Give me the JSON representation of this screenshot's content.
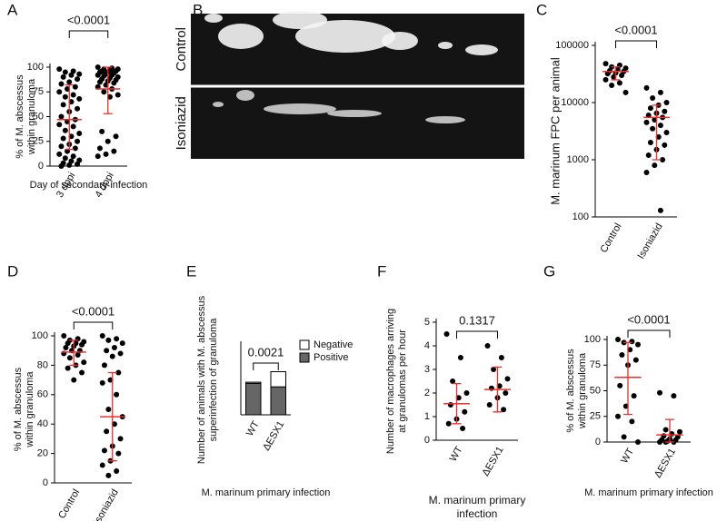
{
  "chart_data": [
    {
      "type": "dotplot",
      "label": "A",
      "significance": "<0.0001",
      "ylabel": [
        "% of M. abscessus",
        "within granuloma"
      ],
      "xlabel": [
        "Day of secondary infection"
      ],
      "categories": [
        "3 dppi",
        "4 dppi"
      ],
      "values": [
        [
          98,
          96,
          95,
          93,
          92,
          90,
          88,
          85,
          83,
          80,
          78,
          75,
          72,
          70,
          68,
          65,
          62,
          58,
          55,
          50,
          47,
          45,
          42,
          40,
          36,
          33,
          30,
          28,
          25,
          22,
          20,
          18,
          15,
          12,
          10,
          8,
          6,
          5,
          3,
          2,
          1,
          0
        ],
        [
          100,
          99,
          98,
          98,
          97,
          96,
          96,
          95,
          95,
          94,
          93,
          92,
          92,
          91,
          90,
          89,
          88,
          87,
          86,
          85,
          84,
          82,
          80,
          78,
          75,
          72,
          70,
          35,
          30,
          25,
          18,
          15,
          12,
          10
        ]
      ],
      "means": [
        47,
        78
      ],
      "lower": [
        17,
        53
      ],
      "upper": [
        82,
        100
      ],
      "ylim": [
        0,
        100
      ],
      "yticks": [
        0,
        25,
        50,
        75,
        100
      ]
    },
    {
      "type": "image",
      "label": "B",
      "rows": [
        "Control",
        "Isoniazid"
      ]
    },
    {
      "type": "dotplot",
      "label": "C",
      "significance": "<0.0001",
      "log": true,
      "ylabel": [
        "M. marinum FPC per animal"
      ],
      "categories": [
        "Control",
        "Isoniazid"
      ],
      "values": [
        [
          48000,
          45000,
          42000,
          40000,
          38000,
          36000,
          35000,
          33000,
          32000,
          30000,
          28000,
          25000,
          22000,
          20000,
          15000
        ],
        [
          18000,
          15000,
          12000,
          10000,
          9000,
          8000,
          7000,
          6500,
          6000,
          5500,
          5000,
          4500,
          4000,
          3500,
          3000,
          2500,
          2000,
          1800,
          1500,
          1200,
          1000,
          800,
          600,
          130
        ]
      ],
      "means": [
        35000,
        5500
      ],
      "lower": [
        25000,
        1000
      ],
      "upper": [
        42000,
        9000
      ],
      "ylim": [
        100,
        100000
      ],
      "yticks": [
        100,
        1000,
        10000,
        100000
      ]
    },
    {
      "type": "dotplot",
      "label": "D",
      "significance": "<0.0001",
      "ylabel": [
        "% of M. abscessus",
        "within granuloma"
      ],
      "categories": [
        "Control",
        "Isoniazid"
      ],
      "values": [
        [
          100,
          98,
          97,
          96,
          95,
          95,
          94,
          93,
          92,
          90,
          90,
          88,
          87,
          85,
          82,
          80,
          78,
          75,
          70
        ],
        [
          100,
          98,
          97,
          95,
          92,
          90,
          88,
          86,
          80,
          75,
          70,
          68,
          60,
          50,
          45,
          40,
          35,
          30,
          25,
          22,
          20,
          15,
          12,
          8,
          5
        ]
      ],
      "means": [
        89,
        45
      ],
      "lower": [
        80,
        15
      ],
      "upper": [
        97,
        75
      ],
      "ylim": [
        0,
        100
      ],
      "yticks": [
        0,
        20,
        40,
        60,
        80,
        100
      ]
    },
    {
      "type": "stacked_bar",
      "label": "E",
      "significance": "0.0021",
      "ylabel": [
        "Number of animals with M. abscessus",
        "superinfection of granuloma"
      ],
      "xlabel": [
        "M. marinum primary infection"
      ],
      "categories": [
        "WT",
        "ΔESX1"
      ],
      "series": [
        {
          "name": "Positive",
          "color": "#666666",
          "values": [
            27,
            24
          ]
        },
        {
          "name": "Negative",
          "color": "#ffffff",
          "values": [
            1,
            13
          ]
        }
      ],
      "ylim": [
        0,
        60
      ]
    },
    {
      "type": "dotplot",
      "label": "F",
      "significance": "0.1317",
      "ylabel": [
        "Number of macrophages arriving",
        "at granulomas per hour"
      ],
      "xlabel": [
        "M. marinum primary",
        "infection"
      ],
      "categories": [
        "WT",
        "ΔESX1"
      ],
      "values": [
        [
          4.5,
          3.5,
          2.5,
          2,
          1.8,
          1.5,
          1.2,
          0.9,
          0.7,
          0.5
        ],
        [
          4,
          3.5,
          3,
          2.6,
          2.3,
          2.2,
          2,
          1.8,
          1.5,
          1.3
        ]
      ],
      "means": [
        1.55,
        2.15
      ],
      "lower": [
        0.7,
        1.2
      ],
      "upper": [
        2.4,
        3.1
      ],
      "ylim": [
        0,
        5
      ],
      "yticks": [
        0,
        1,
        2,
        3,
        4,
        5
      ]
    },
    {
      "type": "dotplot",
      "label": "G",
      "significance": "<0.0001",
      "ylabel": [
        "% of M. abscessus",
        "within granuloma"
      ],
      "xlabel": [
        "M. marinum primary infection"
      ],
      "categories": [
        "WT",
        "ΔESX1"
      ],
      "values": [
        [
          100,
          98,
          97,
          95,
          90,
          85,
          80,
          75,
          55,
          45,
          35,
          25,
          20,
          5,
          0
        ],
        [
          48,
          45,
          12,
          10,
          8,
          6,
          5,
          3,
          2,
          2,
          1,
          0,
          0,
          0
        ]
      ],
      "means": [
        63,
        7
      ],
      "lower": [
        27,
        0
      ],
      "upper": [
        97,
        22
      ],
      "ylim": [
        0,
        100
      ],
      "yticks": [
        0,
        25,
        50,
        75,
        100
      ]
    }
  ]
}
